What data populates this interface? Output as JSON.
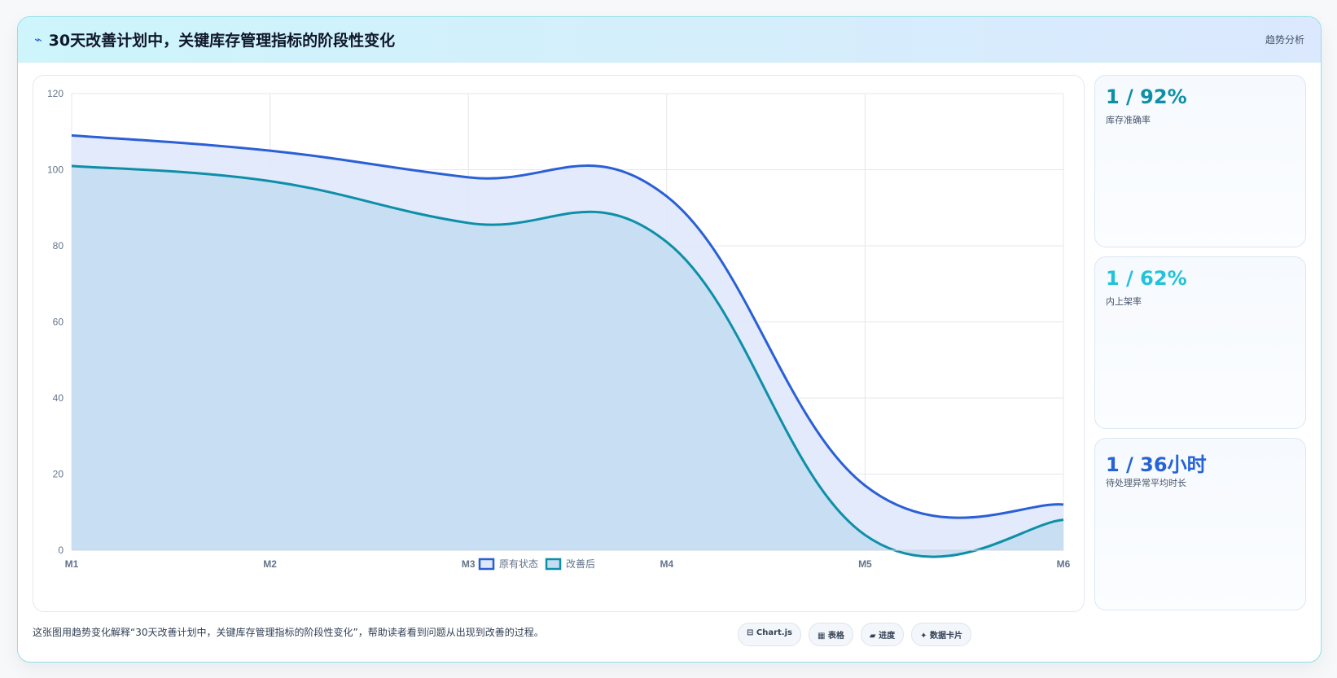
{
  "header": {
    "title": "30天改善计划中，关键库存管理指标的阶段性变化",
    "tag": "趋势分析"
  },
  "chart_data": {
    "type": "line",
    "fill": true,
    "categories": [
      "M1",
      "M2",
      "M3",
      "M4",
      "M5",
      "M6"
    ],
    "series": [
      {
        "name": "原有状态",
        "color": "#2a5fd6",
        "fill_color": "#dfe8fb",
        "values": [
          109,
          105,
          98,
          93,
          17,
          12
        ]
      },
      {
        "name": "改善后",
        "color": "#0e8fa8",
        "fill_color": "#c5ddf1",
        "values": [
          101,
          97,
          86,
          81,
          4,
          8
        ]
      }
    ],
    "ylim": [
      0,
      120
    ],
    "yticks": [
      0,
      20,
      40,
      60,
      80,
      100,
      120
    ],
    "grid": true,
    "legend": "bottom"
  },
  "cards": [
    {
      "value": "1 / 92%",
      "label": "库存准确率",
      "color": "#0e8fa8"
    },
    {
      "value": "1 / 62%",
      "label": "内上架率",
      "color": "#22c3d8"
    },
    {
      "value": "1 / 36小时",
      "label": "待处理异常平均时长",
      "color": "#2563d6"
    }
  ],
  "footer": {
    "caption": "这张图用趋势变化解释“30天改善计划中，关键库存管理指标的阶段性变化”，帮助读者看到问题从出现到改善的过程。",
    "chips": [
      "⊟ Chart.js",
      "▦ 表格",
      "▰ 进度",
      "✦ 数据卡片"
    ]
  }
}
